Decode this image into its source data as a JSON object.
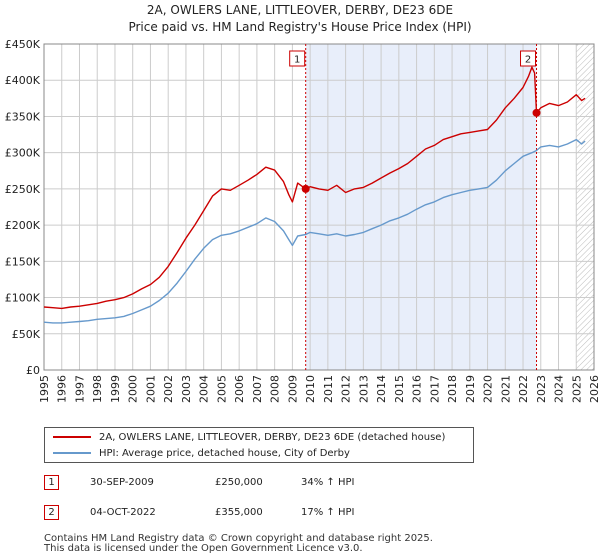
{
  "title_line1": "2A, OWLERS LANE, LITTLEOVER, DERBY, DE23 6DE",
  "title_line2": "Price paid vs. HM Land Registry's House Price Index (HPI)",
  "colors": {
    "red": "#cc0000",
    "blue": "#6699cc",
    "shade": "#e8eefa",
    "grid": "#cccccc",
    "axis": "#444444"
  },
  "chart_data": {
    "type": "line",
    "title": "Price paid vs. HM Land Registry's House Price Index (HPI)",
    "xlim": [
      1995,
      2026
    ],
    "ylim": [
      0,
      450000
    ],
    "x_ticks": [
      1995,
      1996,
      1997,
      1998,
      1999,
      2000,
      2001,
      2002,
      2003,
      2004,
      2005,
      2006,
      2007,
      2008,
      2009,
      2010,
      2011,
      2012,
      2013,
      2014,
      2015,
      2016,
      2017,
      2018,
      2019,
      2020,
      2021,
      2022,
      2023,
      2024,
      2025,
      2026
    ],
    "y_ticks": [
      {
        "value": 0,
        "label": "£0"
      },
      {
        "value": 50000,
        "label": "£50K"
      },
      {
        "value": 100000,
        "label": "£100K"
      },
      {
        "value": 150000,
        "label": "£150K"
      },
      {
        "value": 200000,
        "label": "£200K"
      },
      {
        "value": 250000,
        "label": "£250K"
      },
      {
        "value": 300000,
        "label": "£300K"
      },
      {
        "value": 350000,
        "label": "£350K"
      },
      {
        "value": 400000,
        "label": "£400K"
      },
      {
        "value": 450000,
        "label": "£450K"
      }
    ],
    "shaded_region": [
      2009.75,
      2022.76
    ],
    "hatch_start": 2025.0,
    "series": [
      {
        "name": "2A, OWLERS LANE, LITTLEOVER, DERBY, DE23 6DE (detached house)",
        "color": "#cc0000",
        "points": [
          [
            1995.0,
            87000
          ],
          [
            1995.5,
            86000
          ],
          [
            1996.0,
            85000
          ],
          [
            1996.5,
            87000
          ],
          [
            1997.0,
            88000
          ],
          [
            1997.5,
            90000
          ],
          [
            1998.0,
            92000
          ],
          [
            1998.5,
            95000
          ],
          [
            1999.0,
            97000
          ],
          [
            1999.5,
            100000
          ],
          [
            2000.0,
            105000
          ],
          [
            2000.5,
            112000
          ],
          [
            2001.0,
            118000
          ],
          [
            2001.5,
            128000
          ],
          [
            2002.0,
            143000
          ],
          [
            2002.5,
            162000
          ],
          [
            2003.0,
            182000
          ],
          [
            2003.5,
            200000
          ],
          [
            2004.0,
            220000
          ],
          [
            2004.5,
            240000
          ],
          [
            2005.0,
            250000
          ],
          [
            2005.5,
            248000
          ],
          [
            2006.0,
            255000
          ],
          [
            2006.5,
            262000
          ],
          [
            2007.0,
            270000
          ],
          [
            2007.5,
            280000
          ],
          [
            2008.0,
            276000
          ],
          [
            2008.5,
            260000
          ],
          [
            2008.8,
            242000
          ],
          [
            2009.0,
            232000
          ],
          [
            2009.3,
            258000
          ],
          [
            2009.75,
            250000
          ],
          [
            2010.0,
            253000
          ],
          [
            2010.5,
            250000
          ],
          [
            2011.0,
            248000
          ],
          [
            2011.5,
            255000
          ],
          [
            2012.0,
            245000
          ],
          [
            2012.5,
            250000
          ],
          [
            2013.0,
            252000
          ],
          [
            2013.5,
            258000
          ],
          [
            2014.0,
            265000
          ],
          [
            2014.5,
            272000
          ],
          [
            2015.0,
            278000
          ],
          [
            2015.5,
            285000
          ],
          [
            2016.0,
            295000
          ],
          [
            2016.5,
            305000
          ],
          [
            2017.0,
            310000
          ],
          [
            2017.5,
            318000
          ],
          [
            2018.0,
            322000
          ],
          [
            2018.5,
            326000
          ],
          [
            2019.0,
            328000
          ],
          [
            2019.5,
            330000
          ],
          [
            2020.0,
            332000
          ],
          [
            2020.5,
            345000
          ],
          [
            2021.0,
            362000
          ],
          [
            2021.5,
            375000
          ],
          [
            2022.0,
            390000
          ],
          [
            2022.3,
            405000
          ],
          [
            2022.5,
            418000
          ],
          [
            2022.65,
            410000
          ],
          [
            2022.76,
            355000
          ],
          [
            2023.0,
            362000
          ],
          [
            2023.5,
            368000
          ],
          [
            2024.0,
            365000
          ],
          [
            2024.5,
            370000
          ],
          [
            2025.0,
            380000
          ],
          [
            2025.3,
            372000
          ],
          [
            2025.5,
            375000
          ]
        ]
      },
      {
        "name": "HPI: Average price, detached house, City of Derby",
        "color": "#6699cc",
        "points": [
          [
            1995.0,
            66000
          ],
          [
            1995.5,
            65000
          ],
          [
            1996.0,
            65000
          ],
          [
            1996.5,
            66000
          ],
          [
            1997.0,
            67000
          ],
          [
            1997.5,
            68000
          ],
          [
            1998.0,
            70000
          ],
          [
            1998.5,
            71000
          ],
          [
            1999.0,
            72000
          ],
          [
            1999.5,
            74000
          ],
          [
            2000.0,
            78000
          ],
          [
            2000.5,
            83000
          ],
          [
            2001.0,
            88000
          ],
          [
            2001.5,
            96000
          ],
          [
            2002.0,
            106000
          ],
          [
            2002.5,
            120000
          ],
          [
            2003.0,
            136000
          ],
          [
            2003.5,
            153000
          ],
          [
            2004.0,
            168000
          ],
          [
            2004.5,
            180000
          ],
          [
            2005.0,
            186000
          ],
          [
            2005.5,
            188000
          ],
          [
            2006.0,
            192000
          ],
          [
            2006.5,
            197000
          ],
          [
            2007.0,
            202000
          ],
          [
            2007.5,
            210000
          ],
          [
            2008.0,
            205000
          ],
          [
            2008.5,
            192000
          ],
          [
            2008.8,
            180000
          ],
          [
            2009.0,
            172000
          ],
          [
            2009.3,
            185000
          ],
          [
            2009.75,
            187000
          ],
          [
            2010.0,
            190000
          ],
          [
            2010.5,
            188000
          ],
          [
            2011.0,
            186000
          ],
          [
            2011.5,
            188000
          ],
          [
            2012.0,
            185000
          ],
          [
            2012.5,
            187000
          ],
          [
            2013.0,
            190000
          ],
          [
            2013.5,
            195000
          ],
          [
            2014.0,
            200000
          ],
          [
            2014.5,
            206000
          ],
          [
            2015.0,
            210000
          ],
          [
            2015.5,
            215000
          ],
          [
            2016.0,
            222000
          ],
          [
            2016.5,
            228000
          ],
          [
            2017.0,
            232000
          ],
          [
            2017.5,
            238000
          ],
          [
            2018.0,
            242000
          ],
          [
            2018.5,
            245000
          ],
          [
            2019.0,
            248000
          ],
          [
            2019.5,
            250000
          ],
          [
            2020.0,
            252000
          ],
          [
            2020.5,
            262000
          ],
          [
            2021.0,
            275000
          ],
          [
            2021.5,
            285000
          ],
          [
            2022.0,
            295000
          ],
          [
            2022.5,
            300000
          ],
          [
            2022.76,
            303000
          ],
          [
            2023.0,
            308000
          ],
          [
            2023.5,
            310000
          ],
          [
            2024.0,
            308000
          ],
          [
            2024.5,
            312000
          ],
          [
            2025.0,
            318000
          ],
          [
            2025.3,
            312000
          ],
          [
            2025.5,
            316000
          ]
        ]
      }
    ],
    "sales": [
      {
        "label": "1",
        "x": 2009.75,
        "price": 250000
      },
      {
        "label": "2",
        "x": 2022.76,
        "price": 355000
      }
    ]
  },
  "legend": [
    {
      "label": "2A, OWLERS LANE, LITTLEOVER, DERBY, DE23 6DE (detached house)",
      "color": "#cc0000"
    },
    {
      "label": "HPI: Average price, detached house, City of Derby",
      "color": "#6699cc"
    }
  ],
  "sales_table": [
    {
      "marker": "1",
      "date": "30-SEP-2009",
      "price": "£250,000",
      "hpi": "34% ↑ HPI"
    },
    {
      "marker": "2",
      "date": "04-OCT-2022",
      "price": "£355,000",
      "hpi": "17% ↑ HPI"
    }
  ],
  "footer_line1": "Contains HM Land Registry data © Crown copyright and database right 2025.",
  "footer_line2": "This data is licensed under the Open Government Licence v3.0."
}
